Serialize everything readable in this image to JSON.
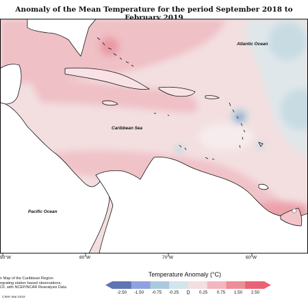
{
  "title": "Anomaly of the Mean Temperature for the period September 2018 to February 2019",
  "labels": {
    "atlantic": "Atlantic Ocean",
    "caribbean": "Caribbean Sea",
    "pacific": "Pacific Ocean"
  },
  "longitude_ticks": [
    "90°W",
    "80°W",
    "70°W",
    "60°W"
  ],
  "legend": {
    "title": "Temperature Anomaly (°C)",
    "tick_labels": [
      "-2.50",
      "-1.50",
      "-0.75",
      "-0.25",
      "0",
      "0.25",
      "0.75",
      "1.50",
      "2.50"
    ],
    "colors": [
      "#5f74b3",
      "#8fa2df",
      "#a9c9df",
      "#d3e4ea",
      "#f3dfe0",
      "#f2b7be",
      "#ec8d98",
      "#e86375"
    ]
  },
  "notes": [
    "n Map of the Caribbean Region",
    "egrating station based observations,",
    "CF, with NCEP/NCAR Reanalysis Data."
  ],
  "copyright": "CIMH Mar.2019"
}
